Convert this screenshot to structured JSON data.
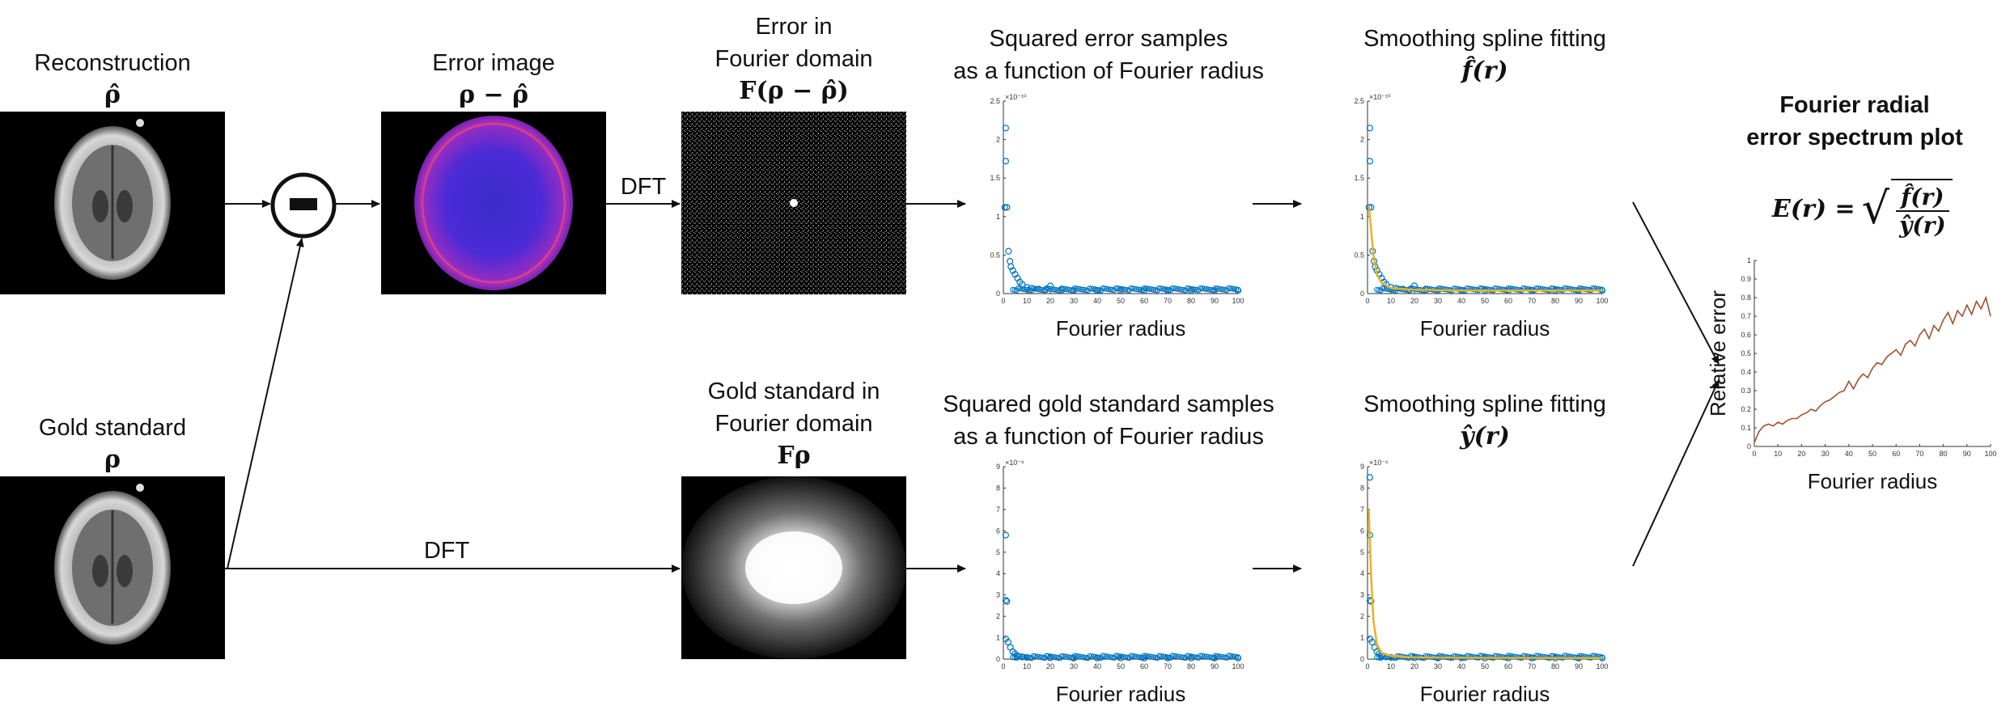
{
  "labels": {
    "reconstruction_title": "Reconstruction",
    "reconstruction_math": "ρ̂",
    "gold_title": "Gold standard",
    "gold_math": "ρ",
    "error_image_title": "Error image",
    "error_image_math": "ρ − ρ̂",
    "fourier_error_title_1": "Error in",
    "fourier_error_title_2": "Fourier domain",
    "fourier_error_math": "F(ρ − ρ̂)",
    "fourier_gold_title_1": "Gold standard in",
    "fourier_gold_title_2": "Fourier domain",
    "fourier_gold_math": "Fρ",
    "dft_upper": "DFT",
    "dft_lower": "DFT",
    "sq_error_title_1": "Squared error samples",
    "sq_error_title_2": "as a function of Fourier radius",
    "sq_gold_title_1": "Squared gold standard samples",
    "sq_gold_title_2": "as a function of Fourier radius",
    "spline_upper_title": "Smoothing spline fitting",
    "spline_upper_math": "f̂(r)",
    "spline_lower_title": "Smoothing spline fitting",
    "spline_lower_math": "ŷ(r)",
    "result_title_1": "Fourier radial",
    "result_title_2": "error spectrum plot",
    "result_formula_lhs": "E(r) =",
    "result_formula_num": "f̂(r)",
    "result_formula_den": "ŷ(r)",
    "minus_symbol": "−"
  },
  "colors": {
    "scatter_blue": "#0072BD",
    "spline_orange": "#EDB120",
    "spectrum_line": "#A0522D",
    "arrow": "#111111"
  },
  "chart_data": [
    {
      "type": "scatter",
      "id": "squared_error_samples",
      "xlabel": "Fourier radius",
      "ylabel": "",
      "exponent_label": "×10⁻¹⁰",
      "xlim": [
        0,
        100
      ],
      "ylim": [
        0,
        2.5
      ],
      "xticks": [
        0,
        10,
        20,
        30,
        40,
        50,
        60,
        70,
        80,
        90,
        100
      ],
      "yticks": [
        0,
        0.5,
        1,
        1.5,
        2,
        2.5
      ],
      "series": [
        {
          "points": [
            [
              1,
              2.15
            ],
            [
              1,
              1.72
            ],
            [
              0.6,
              1.12
            ],
            [
              1.5,
              1.12
            ],
            [
              2.2,
              0.55
            ],
            [
              2.8,
              0.42
            ],
            [
              3.2,
              0.35
            ],
            [
              4,
              0.3
            ],
            [
              5,
              0.25
            ],
            [
              6,
              0.2
            ],
            [
              7,
              0.15
            ],
            [
              8,
              0.12
            ],
            [
              10,
              0.08
            ],
            [
              12,
              0.07
            ],
            [
              15,
              0.06
            ],
            [
              18,
              0.05
            ],
            [
              20,
              0.1
            ],
            [
              25,
              0.05
            ],
            [
              30,
              0.04
            ],
            [
              40,
              0.04
            ],
            [
              50,
              0.04
            ],
            [
              60,
              0.04
            ],
            [
              70,
              0.04
            ],
            [
              80,
              0.04
            ],
            [
              90,
              0.04
            ],
            [
              100,
              0.04
            ]
          ]
        }
      ]
    },
    {
      "type": "scatter",
      "id": "spline_fit_error",
      "xlabel": "Fourier radius",
      "ylabel": "",
      "exponent_label": "×10⁻¹⁰",
      "xlim": [
        0,
        100
      ],
      "ylim": [
        0,
        2.5
      ],
      "xticks": [
        0,
        10,
        20,
        30,
        40,
        50,
        60,
        70,
        80,
        90,
        100
      ],
      "yticks": [
        0,
        0.5,
        1,
        1.5,
        2,
        2.5
      ],
      "series": [
        {
          "points": [
            [
              1,
              2.15
            ],
            [
              1,
              1.72
            ],
            [
              0.6,
              1.12
            ],
            [
              1.5,
              1.12
            ],
            [
              2.2,
              0.55
            ],
            [
              2.8,
              0.42
            ],
            [
              3.2,
              0.35
            ],
            [
              4,
              0.3
            ],
            [
              5,
              0.25
            ],
            [
              6,
              0.2
            ],
            [
              7,
              0.15
            ],
            [
              8,
              0.12
            ],
            [
              10,
              0.08
            ],
            [
              12,
              0.07
            ],
            [
              15,
              0.06
            ],
            [
              18,
              0.05
            ],
            [
              20,
              0.1
            ],
            [
              25,
              0.05
            ],
            [
              30,
              0.04
            ],
            [
              40,
              0.04
            ],
            [
              50,
              0.04
            ],
            [
              60,
              0.04
            ],
            [
              70,
              0.04
            ],
            [
              80,
              0.04
            ],
            [
              90,
              0.04
            ],
            [
              100,
              0.04
            ]
          ]
        }
      ],
      "fit": [
        [
          0.5,
          1.15
        ],
        [
          1.5,
          0.85
        ],
        [
          2.5,
          0.5
        ],
        [
          4,
          0.25
        ],
        [
          6,
          0.14
        ],
        [
          10,
          0.07
        ],
        [
          20,
          0.05
        ],
        [
          40,
          0.04
        ],
        [
          100,
          0.04
        ]
      ]
    },
    {
      "type": "scatter",
      "id": "squared_gold_samples",
      "xlabel": "Fourier radius",
      "ylabel": "",
      "exponent_label": "×10⁻⁶",
      "xlim": [
        0,
        100
      ],
      "ylim": [
        0,
        9
      ],
      "xticks": [
        0,
        10,
        20,
        30,
        40,
        50,
        60,
        70,
        80,
        90,
        100
      ],
      "yticks": [
        0,
        1,
        2,
        3,
        4,
        5,
        6,
        7,
        8,
        9
      ],
      "series": [
        {
          "points": [
            [
              1,
              5.8
            ],
            [
              1,
              2.75
            ],
            [
              1.5,
              2.7
            ],
            [
              1,
              0.95
            ],
            [
              2,
              0.8
            ],
            [
              3,
              0.55
            ],
            [
              4,
              0.35
            ],
            [
              5,
              0.25
            ],
            [
              6,
              0.15
            ],
            [
              8,
              0.1
            ],
            [
              10,
              0.08
            ],
            [
              20,
              0.06
            ],
            [
              30,
              0.05
            ],
            [
              40,
              0.05
            ],
            [
              50,
              0.05
            ],
            [
              60,
              0.05
            ],
            [
              70,
              0.05
            ],
            [
              80,
              0.05
            ],
            [
              90,
              0.05
            ],
            [
              100,
              0.05
            ]
          ]
        }
      ]
    },
    {
      "type": "scatter",
      "id": "spline_fit_gold",
      "xlabel": "Fourier radius",
      "ylabel": "",
      "exponent_label": "×10⁻⁶",
      "xlim": [
        0,
        100
      ],
      "ylim": [
        0,
        9
      ],
      "xticks": [
        0,
        10,
        20,
        30,
        40,
        50,
        60,
        70,
        80,
        90,
        100
      ],
      "yticks": [
        0,
        1,
        2,
        3,
        4,
        5,
        6,
        7,
        8,
        9
      ],
      "series": [
        {
          "points": [
            [
              1,
              8.5
            ],
            [
              1,
              5.8
            ],
            [
              1,
              2.75
            ],
            [
              1.5,
              2.7
            ],
            [
              1,
              0.95
            ],
            [
              2,
              0.8
            ],
            [
              3,
              0.55
            ],
            [
              4,
              0.35
            ],
            [
              5,
              0.25
            ],
            [
              6,
              0.15
            ],
            [
              8,
              0.1
            ],
            [
              10,
              0.08
            ],
            [
              20,
              0.06
            ],
            [
              30,
              0.05
            ],
            [
              40,
              0.05
            ],
            [
              50,
              0.05
            ],
            [
              60,
              0.05
            ],
            [
              70,
              0.05
            ],
            [
              80,
              0.05
            ],
            [
              90,
              0.05
            ],
            [
              100,
              0.05
            ]
          ]
        }
      ],
      "fit": [
        [
          0.5,
          7
        ],
        [
          1.5,
          4
        ],
        [
          2.5,
          1.8
        ],
        [
          4,
          0.7
        ],
        [
          6,
          0.3
        ],
        [
          10,
          0.15
        ],
        [
          20,
          0.08
        ],
        [
          40,
          0.06
        ],
        [
          100,
          0.05
        ]
      ]
    },
    {
      "type": "line",
      "id": "fourier_radial_error_spectrum",
      "xlabel": "Fourier radius",
      "ylabel": "Relative error",
      "xlim": [
        0,
        100
      ],
      "ylim": [
        0,
        1
      ],
      "xticks": [
        0,
        10,
        20,
        30,
        40,
        50,
        60,
        70,
        80,
        90,
        100
      ],
      "yticks": [
        0,
        0.1,
        0.2,
        0.3,
        0.4,
        0.5,
        0.6,
        0.7,
        0.8,
        0.9,
        1
      ],
      "x": [
        0,
        2,
        4,
        6,
        8,
        10,
        12,
        14,
        16,
        18,
        20,
        22,
        24,
        26,
        28,
        30,
        32,
        34,
        36,
        38,
        40,
        42,
        44,
        46,
        48,
        50,
        52,
        54,
        56,
        58,
        60,
        62,
        64,
        66,
        68,
        70,
        72,
        74,
        76,
        78,
        80,
        82,
        84,
        86,
        88,
        90,
        92,
        94,
        96,
        98,
        100
      ],
      "values": [
        0.02,
        0.08,
        0.11,
        0.12,
        0.11,
        0.13,
        0.12,
        0.14,
        0.15,
        0.15,
        0.17,
        0.18,
        0.2,
        0.19,
        0.22,
        0.24,
        0.25,
        0.27,
        0.29,
        0.3,
        0.35,
        0.31,
        0.36,
        0.39,
        0.37,
        0.42,
        0.45,
        0.44,
        0.48,
        0.5,
        0.52,
        0.49,
        0.55,
        0.57,
        0.54,
        0.6,
        0.63,
        0.58,
        0.65,
        0.62,
        0.68,
        0.72,
        0.66,
        0.73,
        0.7,
        0.76,
        0.71,
        0.78,
        0.74,
        0.8,
        0.7
      ]
    }
  ]
}
